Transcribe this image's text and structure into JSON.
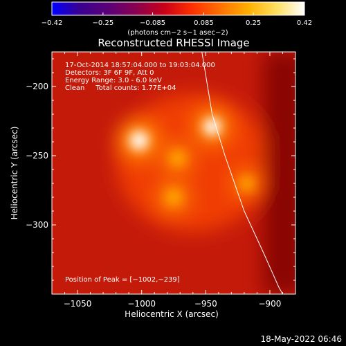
{
  "chart_data": {
    "type": "heatmap",
    "title": "Reconstructed RHESSI Image",
    "xlabel": "Heliocentric X (arcsec)",
    "ylabel": "Heliocentric Y (arcsec)",
    "xlim": [
      -1070,
      -880
    ],
    "ylim": [
      -350,
      -175
    ],
    "x_ticks": [
      -1050,
      -1000,
      -950,
      -900
    ],
    "x_tick_labels": [
      "−1050",
      "−1000",
      "−950",
      "−900"
    ],
    "y_ticks": [
      -200,
      -250,
      -300
    ],
    "y_tick_labels": [
      "−200",
      "−250",
      "−300"
    ],
    "colorbar": {
      "min": -0.42,
      "max": 0.42,
      "ticks": [
        -0.42,
        -0.25,
        -0.085,
        0.085,
        0.25,
        0.42
      ],
      "tick_labels": [
        "−0.42",
        "−0.25",
        "−0.085",
        "0.085",
        "0.25",
        "0.42"
      ],
      "units_text": "(photons cm−2 s−1 asec−2)",
      "palette": [
        "#0000ff",
        "#3a0090",
        "#5a0078",
        "#8a0050",
        "#c80018",
        "#ff3000",
        "#ff7000",
        "#ffb000",
        "#ffe060",
        "#ffffff"
      ]
    },
    "info_lines": [
      "17-Oct-2014 18:57:04.000 to 19:03:04.000",
      "Detectors: 3F 6F 9F, Att 0",
      "Energy Range: 3.0 - 6.0 keV",
      "Clean     Total counts: 1.77E+04"
    ],
    "peak_text": "Position of Peak = [−1002,−239]",
    "peak_position": [
      -1002,
      -239
    ],
    "sources": [
      {
        "x": -1002,
        "y": -239,
        "intensity": 0.42
      },
      {
        "x": -945,
        "y": -229,
        "intensity": 0.38
      },
      {
        "x": -972,
        "y": -252,
        "intensity": 0.26
      },
      {
        "x": -975,
        "y": -280,
        "intensity": 0.28
      },
      {
        "x": -918,
        "y": -270,
        "intensity": 0.22
      }
    ],
    "limb": [
      [
        -953,
        -175
      ],
      [
        -945,
        -220
      ],
      [
        -935,
        -250
      ],
      [
        -920,
        -290
      ],
      [
        -905,
        -320
      ],
      [
        -893,
        -345
      ],
      [
        -890,
        -350
      ]
    ]
  },
  "footer": {
    "timestamp": "18-May-2022 06:46"
  },
  "colors": {
    "background": "#000000",
    "text": "#ffffff"
  }
}
